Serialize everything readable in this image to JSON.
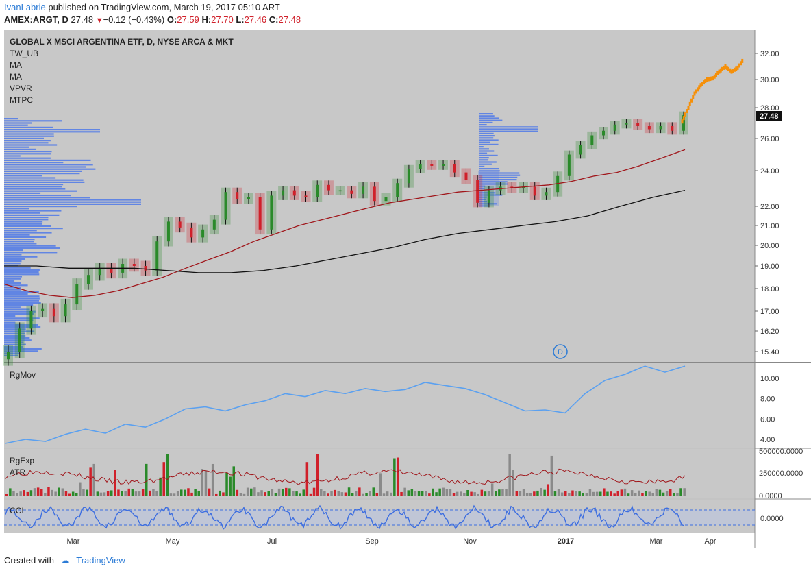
{
  "header": {
    "author": "IvanLabrie",
    "published_text": "published on TradingView.com, March 19, 2017 05:10 ART",
    "symbol": "AMEX:ARGT, D",
    "last": "27.48",
    "change": "−0.12 (−0.43%)",
    "o_label": "O:",
    "o": "27.59",
    "h_label": "H:",
    "h": "27.70",
    "l_label": "L:",
    "l": "27.46",
    "c_label": "C:",
    "c": "27.48"
  },
  "footer": {
    "created_with": "Created with",
    "brand": "TradingView"
  },
  "colors": {
    "up": "#2a8a2a",
    "down": "#d0202a",
    "ma_fast": "#a0161b",
    "ma_slow": "#111111",
    "volume_profile": "#4f79e8",
    "forecast": "#f5900a",
    "rgmov": "#5aa0f0",
    "cci": "#3d6ee0",
    "pane_bg": "#c8c8c8"
  },
  "chart_data": [
    {
      "type": "line",
      "title": "GLOBAL X MSCI ARGENTINA ETF, D, NYSE ARCA & MKT",
      "indicators": [
        "TW_UB",
        "MA",
        "MA",
        "VPVR",
        "MTPC"
      ],
      "marker": "D",
      "last_price_label": "27.48",
      "y_ticks": [
        15.4,
        16.2,
        17.0,
        18.0,
        19.0,
        20.0,
        21.0,
        22.0,
        24.0,
        26.0,
        28.0,
        30.0,
        32.0
      ],
      "x_ticks": [
        "Mar",
        "May",
        "Jul",
        "Sep",
        "Nov",
        "2017",
        "Mar",
        "Apr"
      ],
      "series": [
        {
          "values": [
            15.4,
            16.3,
            17.0,
            17.1,
            16.8,
            17.3,
            18.2,
            18.6,
            18.9,
            18.7,
            19.1,
            19.0,
            18.8,
            20.2,
            21.2,
            20.9,
            20.4,
            20.8,
            21.3,
            22.8,
            22.4,
            22.5,
            20.8,
            22.6,
            22.9,
            22.6,
            22.5,
            23.2,
            22.9,
            22.9,
            22.7,
            23.1,
            22.3,
            22.5,
            23.3,
            24.1,
            24.4,
            24.3,
            24.4,
            23.9,
            23.5,
            22.2,
            22.9,
            23.1,
            23.0,
            23.1,
            22.6,
            22.8,
            23.7,
            25.0,
            25.6,
            26.2,
            26.5,
            26.9,
            27.0,
            26.8,
            26.6,
            26.8,
            26.5,
            27.5
          ]
        },
        {
          "values": [
            18.2,
            17.9,
            17.7,
            17.6,
            17.7,
            17.9,
            18.2,
            18.5,
            18.9,
            19.3,
            19.7,
            20.2,
            20.6,
            21.0,
            21.3,
            21.6,
            21.9,
            22.2,
            22.4,
            22.6,
            22.8,
            22.9,
            23.0,
            23.1,
            23.2,
            23.4,
            23.7,
            23.9,
            24.3,
            24.8,
            25.3
          ]
        },
        {
          "values": [
            19.0,
            19.0,
            18.9,
            18.9,
            18.9,
            18.8,
            18.7,
            18.7,
            18.8,
            19.0,
            19.3,
            19.6,
            19.9,
            20.3,
            20.6,
            20.8,
            21.0,
            21.2,
            21.5,
            22.0,
            22.5,
            22.9
          ]
        },
        {
          "values": [
            27.1,
            28.0,
            29.0,
            29.6,
            30.0,
            30.1,
            30.6,
            31.0,
            30.6,
            30.9,
            31.6
          ]
        }
      ]
    },
    {
      "type": "line",
      "title": "RgMov",
      "y_ticks": [
        4.0,
        6.0,
        8.0,
        10.0
      ],
      "values": [
        3.6,
        4.0,
        3.8,
        4.5,
        5.0,
        4.6,
        5.5,
        5.2,
        6.0,
        7.0,
        7.2,
        6.8,
        7.4,
        7.8,
        8.5,
        8.2,
        8.8,
        8.5,
        9.0,
        8.7,
        8.9,
        9.6,
        9.3,
        9.0,
        8.4,
        7.6,
        6.8,
        6.9,
        6.6,
        8.5,
        9.8,
        10.4,
        11.2,
        10.6,
        11.2
      ]
    },
    {
      "type": "bar",
      "title": "RgExp",
      "indicators": [
        "ATR"
      ],
      "y_ticks": [
        "0.0000",
        "250000.0000",
        "500000.0000"
      ]
    },
    {
      "type": "line",
      "title": "CCI",
      "y_ticks": [
        "0.0000"
      ]
    }
  ]
}
